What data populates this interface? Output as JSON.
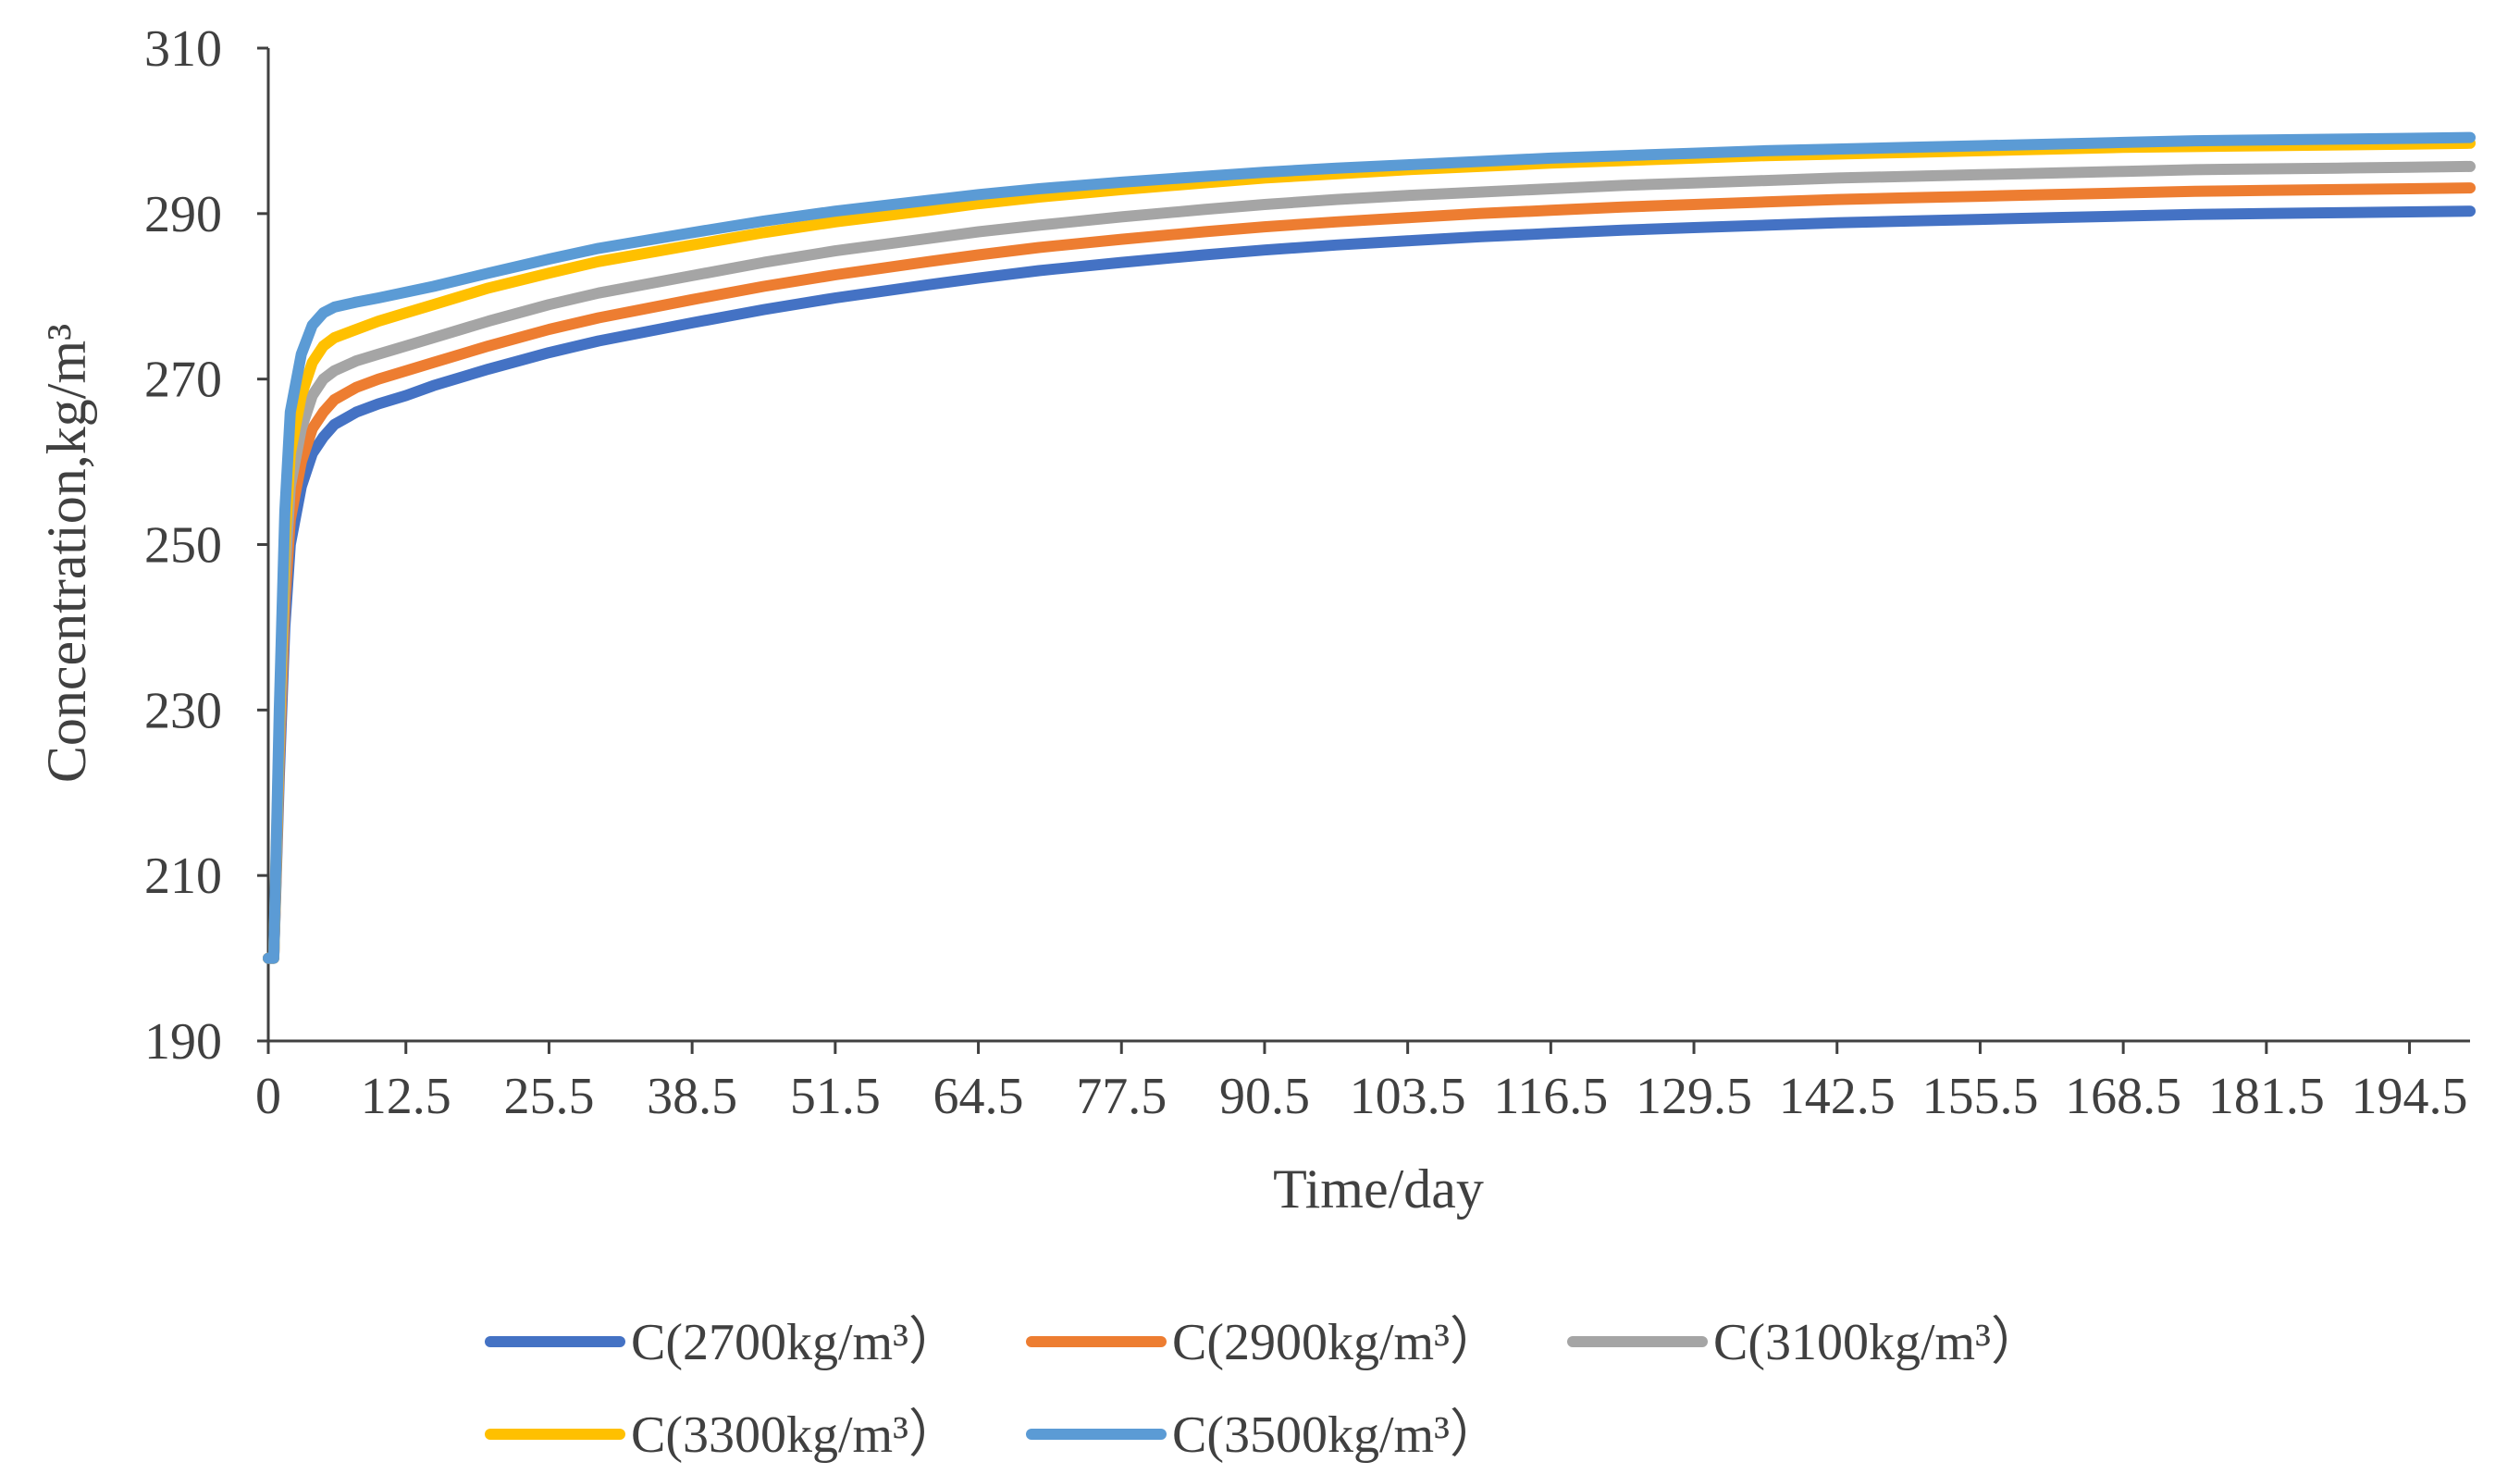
{
  "chart_data": {
    "type": "line",
    "title": "",
    "xlabel": "Time/day",
    "ylabel": "Concentration,kg/m³",
    "xlim": [
      0,
      200
    ],
    "ylim": [
      190,
      310
    ],
    "yticks": [
      190,
      210,
      230,
      250,
      270,
      290,
      310
    ],
    "xtick_labels": [
      "0",
      "12.5",
      "25.5",
      "38.5",
      "51.5",
      "64.5",
      "77.5",
      "90.5",
      "103.5",
      "116.5",
      "129.5",
      "142.5",
      "155.5",
      "168.5",
      "181.5",
      "194.5"
    ],
    "xtick_values": [
      0,
      12.5,
      25.5,
      38.5,
      51.5,
      64.5,
      77.5,
      90.5,
      103.5,
      116.5,
      129.5,
      142.5,
      155.5,
      168.5,
      181.5,
      194.5
    ],
    "legend_position": "bottom",
    "x": [
      0,
      0.5,
      1,
      1.5,
      2,
      3,
      4,
      5,
      6,
      8,
      10,
      12.5,
      15,
      20,
      25.5,
      30,
      38.5,
      45,
      51.5,
      60,
      64.5,
      70,
      77.5,
      85,
      90.5,
      97,
      103.5,
      110,
      116.5,
      123,
      129.5,
      136,
      142.5,
      149,
      155.5,
      162,
      168.5,
      175,
      181.5,
      188,
      194.5,
      200
    ],
    "series": [
      {
        "name": "C(2700kg/m³）",
        "color": "#4472C4",
        "values": [
          200,
          200,
          222,
          240,
          250,
          257,
          261,
          263,
          264.5,
          266,
          267,
          268,
          269.2,
          271.2,
          273.2,
          274.6,
          276.8,
          278.4,
          279.8,
          281.4,
          282.2,
          283.1,
          284.1,
          285,
          285.6,
          286.2,
          286.7,
          287.2,
          287.6,
          288,
          288.3,
          288.6,
          288.9,
          289.1,
          289.3,
          289.5,
          289.7,
          289.9,
          290,
          290.1,
          290.2,
          290.3
        ]
      },
      {
        "name": "C(2900kg/m³）",
        "color": "#ED7D31",
        "values": [
          200,
          200,
          224,
          243,
          253,
          260,
          264,
          266,
          267.5,
          269,
          270,
          271,
          272,
          274,
          276,
          277.4,
          279.6,
          281.2,
          282.6,
          284.2,
          285,
          285.9,
          286.9,
          287.8,
          288.4,
          289,
          289.5,
          290,
          290.4,
          290.8,
          291.1,
          291.4,
          291.7,
          291.9,
          292.1,
          292.3,
          292.5,
          292.7,
          292.8,
          292.9,
          293,
          293.1
        ]
      },
      {
        "name": "C(3100kg/m³）",
        "color": "#A5A5A5",
        "values": [
          200,
          200,
          226,
          246,
          257,
          264,
          268,
          270,
          271,
          272.2,
          273,
          274,
          275,
          277,
          279,
          280.4,
          282.5,
          284.1,
          285.5,
          287,
          287.8,
          288.6,
          289.6,
          290.5,
          291.1,
          291.7,
          292.2,
          292.6,
          293,
          293.4,
          293.7,
          294,
          294.3,
          294.5,
          294.7,
          294.9,
          295.1,
          295.3,
          295.4,
          295.5,
          295.6,
          295.7
        ]
      },
      {
        "name": "C(3300kg/m³）",
        "color": "#FFC000",
        "values": [
          200,
          200,
          228,
          250,
          261,
          268,
          272,
          274,
          275,
          276,
          277,
          278,
          279,
          281,
          282.8,
          284.2,
          286.2,
          287.7,
          289,
          290.4,
          291.2,
          292,
          292.9,
          293.7,
          294.3,
          294.8,
          295.3,
          295.7,
          296.1,
          296.4,
          296.7,
          297,
          297.2,
          297.4,
          297.6,
          297.8,
          298,
          298.1,
          298.2,
          298.3,
          298.4,
          298.5
        ]
      },
      {
        "name": "C(3500kg/m³）",
        "color": "#5B9BD5",
        "values": [
          200,
          200,
          230,
          254,
          266,
          273,
          276.5,
          278,
          278.7,
          279.3,
          279.8,
          280.5,
          281.2,
          282.8,
          284.5,
          285.8,
          287.7,
          289.1,
          290.3,
          291.6,
          292.3,
          293,
          293.8,
          294.5,
          295,
          295.5,
          295.9,
          296.3,
          296.7,
          297,
          297.3,
          297.6,
          297.8,
          298,
          298.2,
          298.4,
          298.6,
          298.8,
          298.9,
          299,
          299.1,
          299.2
        ]
      }
    ]
  }
}
